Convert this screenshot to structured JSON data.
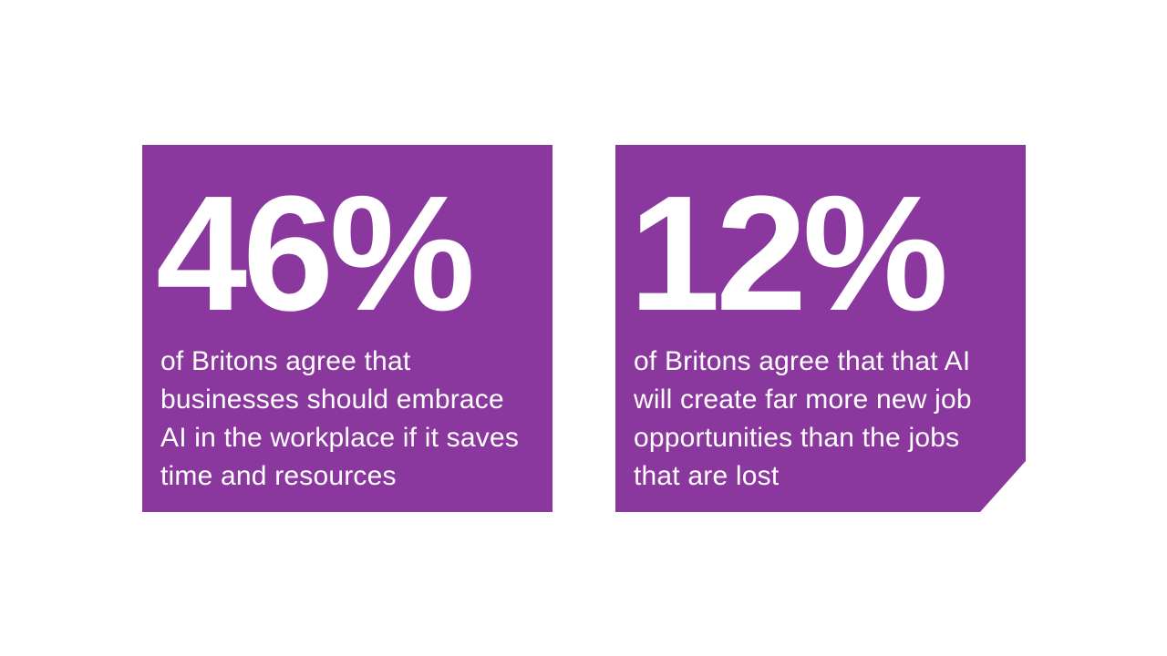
{
  "theme": {
    "card_color": "#8a389e",
    "text_color": "#ffffff",
    "page_background": "#ffffff"
  },
  "cards": [
    {
      "value": "46%",
      "description_lines": [
        "of Britons agree that",
        "businesses should embrace",
        "AI in the workplace if it saves",
        "time and resources"
      ]
    },
    {
      "value": "12%",
      "description_lines": [
        "of Britons agree that that AI",
        "will create far more new job",
        "opportunities than the jobs",
        "that are lost"
      ]
    }
  ]
}
